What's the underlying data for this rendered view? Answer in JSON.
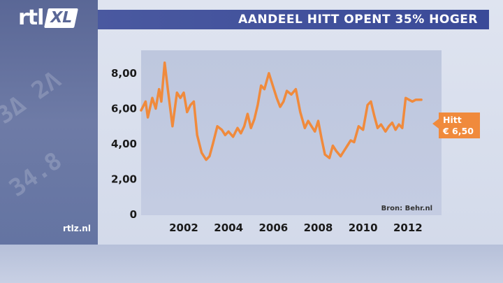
{
  "brand": {
    "logo_rtl": "rtl",
    "logo_xl": "XL",
    "site": "rtlz.nl"
  },
  "headline": "AANDEEL HITT OPENT 35% HOGER",
  "colors": {
    "title_bar": "#3a4a98",
    "line": "#f08a3c",
    "callout": "#f08a3c"
  },
  "chart_data": {
    "type": "line",
    "title": "",
    "xlabel": "",
    "ylabel": "",
    "x_ticks": [
      "2002",
      "2004",
      "2006",
      "2008",
      "2010",
      "2012"
    ],
    "y_ticks": [
      "0",
      "2,00",
      "4,00",
      "6,00",
      "8,00"
    ],
    "ylim": [
      0,
      9.3
    ],
    "xlim": [
      2000.1,
      2013.5
    ],
    "grid": false,
    "source": "Bron: Behr.nl",
    "series": [
      {
        "name": "Hitt",
        "x": [
          2000.1,
          2000.3,
          2000.4,
          2000.6,
          2000.75,
          2000.9,
          2001.0,
          2001.15,
          2001.3,
          2001.5,
          2001.7,
          2001.85,
          2002.0,
          2002.15,
          2002.3,
          2002.45,
          2002.6,
          2002.8,
          2003.0,
          2003.15,
          2003.3,
          2003.5,
          2003.7,
          2003.85,
          2004.0,
          2004.2,
          2004.4,
          2004.55,
          2004.7,
          2004.85,
          2005.0,
          2005.15,
          2005.3,
          2005.45,
          2005.6,
          2005.8,
          2006.0,
          2006.15,
          2006.3,
          2006.45,
          2006.6,
          2006.8,
          2007.0,
          2007.2,
          2007.4,
          2007.55,
          2007.7,
          2007.85,
          2008.0,
          2008.15,
          2008.3,
          2008.5,
          2008.65,
          2008.8,
          2009.0,
          2009.15,
          2009.3,
          2009.45,
          2009.6,
          2009.8,
          2010.0,
          2010.2,
          2010.35,
          2010.5,
          2010.65,
          2010.8,
          2011.0,
          2011.15,
          2011.3,
          2011.45,
          2011.6,
          2011.75,
          2011.9,
          2012.05,
          2012.2,
          2012.35,
          2012.5,
          2012.6
        ],
        "values": [
          5.9,
          6.4,
          5.5,
          6.6,
          6.0,
          7.1,
          6.4,
          8.6,
          7.0,
          5.0,
          6.9,
          6.6,
          6.9,
          5.8,
          6.2,
          6.4,
          4.5,
          3.5,
          3.1,
          3.3,
          4.0,
          5.0,
          4.8,
          4.5,
          4.7,
          4.4,
          4.9,
          4.6,
          5.0,
          5.7,
          4.9,
          5.4,
          6.2,
          7.3,
          7.1,
          8.0,
          7.2,
          6.6,
          6.1,
          6.4,
          7.0,
          6.8,
          7.1,
          5.8,
          4.9,
          5.3,
          5.0,
          4.7,
          5.3,
          4.3,
          3.4,
          3.2,
          3.9,
          3.6,
          3.3,
          3.6,
          3.9,
          4.2,
          4.1,
          5.0,
          4.8,
          6.2,
          6.4,
          5.6,
          4.9,
          5.1,
          4.7,
          5.0,
          5.2,
          4.8,
          5.1,
          4.9,
          6.6,
          6.5,
          6.4,
          6.5,
          6.5,
          6.5
        ]
      }
    ],
    "annotation": {
      "label": "Hitt",
      "value": "€ 6,50"
    }
  }
}
